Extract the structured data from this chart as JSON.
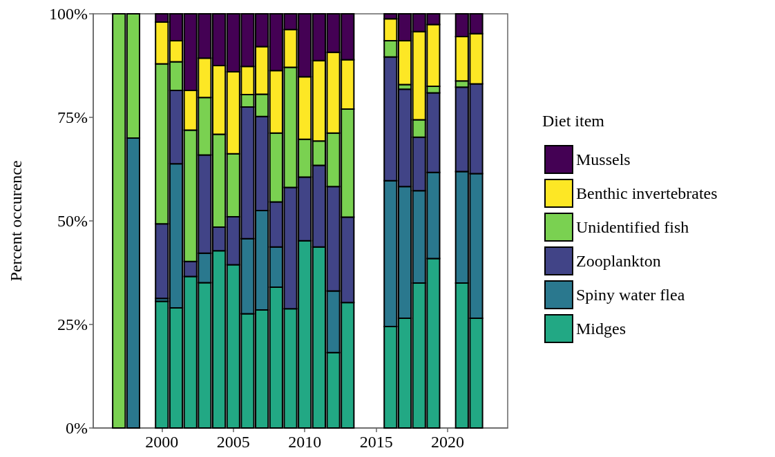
{
  "chart_data": {
    "type": "bar",
    "stacked": true,
    "ylabel": "Percent occurence",
    "legend_title": "Diet item",
    "legend": "right",
    "grid": false,
    "x": [
      1997,
      1998,
      2000,
      2001,
      2002,
      2003,
      2004,
      2005,
      2006,
      2007,
      2008,
      2009,
      2010,
      2011,
      2012,
      2013,
      2016,
      2017,
      2018,
      2019,
      2021,
      2022
    ],
    "xlim": [
      1995.2,
      2024.2
    ],
    "xticks": [
      2000,
      2005,
      2010,
      2015,
      2020
    ],
    "ylim": [
      0,
      100
    ],
    "yticks": [
      {
        "value": 0,
        "label": "0%"
      },
      {
        "value": 25,
        "label": "25%"
      },
      {
        "value": 50,
        "label": "50%"
      },
      {
        "value": 75,
        "label": "75%"
      },
      {
        "value": 100,
        "label": "100%"
      }
    ],
    "series": [
      {
        "name": "Midges",
        "color": "#22a884",
        "values": [
          null,
          null,
          30.6,
          29.0,
          36.6,
          35.1,
          42.8,
          39.4,
          27.6,
          28.5,
          34.0,
          28.8,
          45.2,
          43.7,
          18.2,
          30.3,
          24.5,
          26.5,
          35.0,
          40.9,
          35.0,
          26.5
        ]
      },
      {
        "name": "Spiny water flea",
        "color": "#2a788e",
        "values": [
          null,
          70,
          0.7,
          34.8,
          null,
          7.1,
          null,
          null,
          18.1,
          24.0,
          9.7,
          null,
          null,
          null,
          14.9,
          null,
          35.2,
          31.8,
          22.3,
          20.8,
          26.9,
          34.9
        ]
      },
      {
        "name": "Zooplankton",
        "color": "#414487",
        "values": [
          null,
          null,
          18.0,
          17.7,
          3.6,
          23.7,
          5.7,
          11.6,
          31.8,
          22.7,
          10.9,
          29.3,
          15.4,
          19.7,
          25.2,
          20.6,
          29.9,
          23.5,
          12.9,
          19.2,
          20.4,
          21.7
        ]
      },
      {
        "name": "Unidentified fish",
        "color": "#7ad151",
        "values": [
          100,
          30,
          38.6,
          6.9,
          31.7,
          13.9,
          22.4,
          15.2,
          3.0,
          5.4,
          16.6,
          29.0,
          9.1,
          5.9,
          12.9,
          26.1,
          3.9,
          1.1,
          4.2,
          1.6,
          1.5,
          null
        ]
      },
      {
        "name": "Benthic invertebrates",
        "color": "#fde725",
        "values": [
          null,
          null,
          10.1,
          5.1,
          9.6,
          9.5,
          16.6,
          19.8,
          6.8,
          11.5,
          15.1,
          9.1,
          15.1,
          19.4,
          19.5,
          11.9,
          5.3,
          10.6,
          21.3,
          14.9,
          10.7,
          12.1
        ]
      },
      {
        "name": "Mussels",
        "color": "#440154",
        "values": [
          null,
          null,
          2.0,
          6.5,
          18.5,
          10.7,
          12.5,
          14.0,
          12.7,
          7.9,
          13.7,
          3.8,
          15.2,
          11.3,
          9.3,
          11.1,
          1.2,
          6.5,
          4.3,
          2.6,
          5.5,
          4.8
        ]
      }
    ]
  }
}
